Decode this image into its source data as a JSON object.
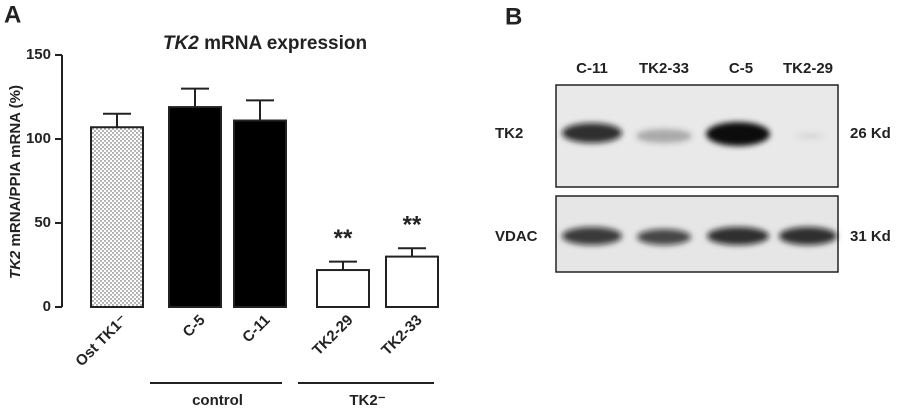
{
  "chart_data": {
    "type": "bar",
    "panel_label": "A",
    "title_parts": [
      {
        "text": "TK2",
        "italic": true
      },
      {
        "text": " mRNA expression"
      }
    ],
    "y_label_parts": [
      {
        "text": "TK2",
        "italic": true
      },
      {
        "text": " mRNA/PPIA mRNA (%)"
      }
    ],
    "categories": [
      "Ost TK1⁻",
      "C-5",
      "C-11",
      "TK2-29",
      "TK2-33"
    ],
    "values": [
      107,
      119,
      111,
      22,
      30
    ],
    "errors": [
      8,
      11,
      12,
      5,
      5
    ],
    "fills": [
      "dots",
      "#000000",
      "#000000",
      "#ffffff",
      "#ffffff"
    ],
    "annotations": [
      null,
      null,
      null,
      "**",
      "**"
    ],
    "groups": [
      {
        "label": "control",
        "from": "C-5",
        "to": "C-11"
      },
      {
        "label": "TK2⁻",
        "from": "TK2-29",
        "to": "TK2-33"
      }
    ],
    "ylim": [
      0,
      150
    ],
    "yticks": [
      0,
      50,
      100,
      150
    ]
  },
  "blot": {
    "panel_label": "B",
    "lanes": [
      "C-11",
      "TK2-33",
      "C-5",
      "TK2-29"
    ],
    "rows": [
      {
        "label": "TK2",
        "size": "26 Kd"
      },
      {
        "label": "VDAC",
        "size": "31 Kd"
      }
    ]
  }
}
